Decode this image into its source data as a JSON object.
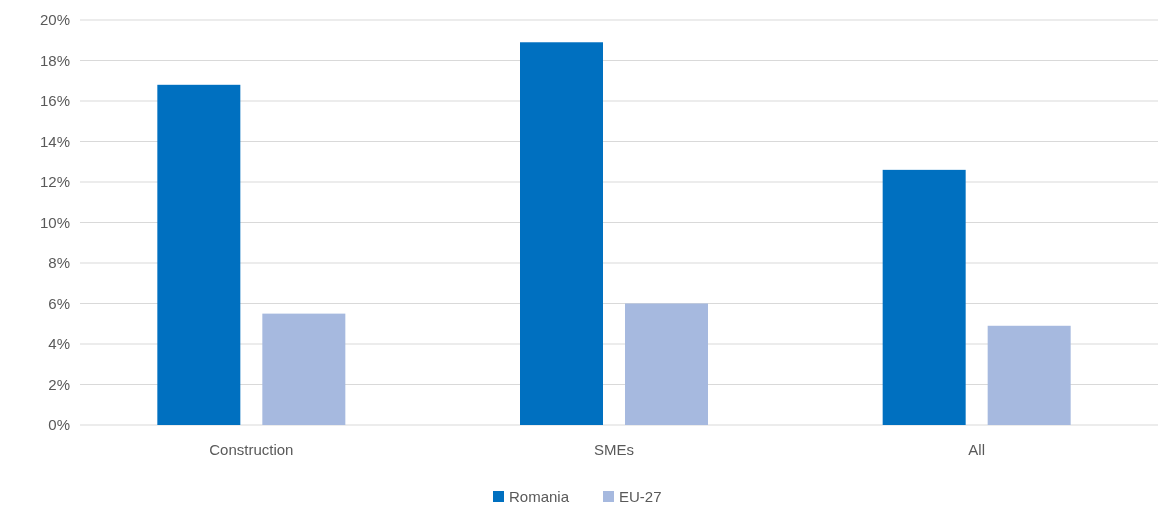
{
  "chart_data": {
    "type": "bar",
    "categories": [
      "Construction",
      "SMEs",
      "All"
    ],
    "series": [
      {
        "name": "Romania",
        "color": "#0070c0",
        "values": [
          16.8,
          18.9,
          12.6
        ]
      },
      {
        "name": "EU-27",
        "color": "#a6b9df",
        "values": [
          5.5,
          6.0,
          4.9
        ]
      }
    ],
    "ylim": [
      0,
      20
    ],
    "yticks": [
      {
        "value": 0,
        "label": "0%"
      },
      {
        "value": 2,
        "label": "2%"
      },
      {
        "value": 4,
        "label": "4%"
      },
      {
        "value": 6,
        "label": "6%"
      },
      {
        "value": 8,
        "label": "8%"
      },
      {
        "value": 10,
        "label": "10%"
      },
      {
        "value": 12,
        "label": "12%"
      },
      {
        "value": 14,
        "label": "14%"
      },
      {
        "value": 16,
        "label": "16%"
      },
      {
        "value": 18,
        "label": "18%"
      },
      {
        "value": 20,
        "label": "20%"
      }
    ],
    "grid": "y",
    "legend": "bottom"
  }
}
